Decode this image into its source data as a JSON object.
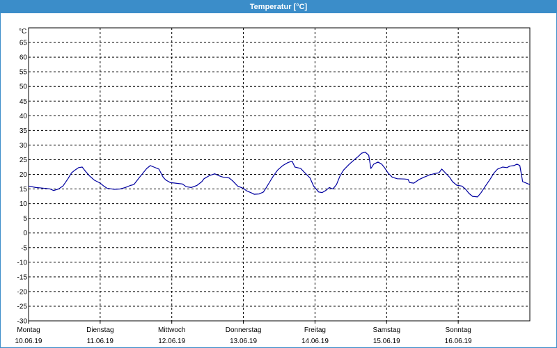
{
  "window": {
    "title": "Temperatur [°C]"
  },
  "colors": {
    "title_bar": "#3b8dc9",
    "line": "#0000a0",
    "grid": "#000000"
  },
  "chart_data": {
    "type": "line",
    "title": "Temperatur [°C]",
    "ylabel": "°C",
    "ylim": [
      -30,
      70
    ],
    "ytick_step": 5,
    "grid": true,
    "xlim": [
      0,
      7
    ],
    "x_unit": "days from 10.06.19",
    "day_labels": [
      {
        "day": "Montag",
        "date": "10.06.19"
      },
      {
        "day": "Dienstag",
        "date": "11.06.19"
      },
      {
        "day": "Mittwoch",
        "date": "12.06.19"
      },
      {
        "day": "Donnerstag",
        "date": "13.06.19"
      },
      {
        "day": "Freitag",
        "date": "14.06.19"
      },
      {
        "day": "Samstag",
        "date": "15.06.19"
      },
      {
        "day": "Sonntag",
        "date": "16.06.19"
      }
    ],
    "series": [
      {
        "color": "#0000a0",
        "points": [
          [
            0.0,
            16.0
          ],
          [
            0.1,
            15.5
          ],
          [
            0.2,
            15.3
          ],
          [
            0.3,
            15.0
          ],
          [
            0.35,
            14.5
          ],
          [
            0.42,
            15.0
          ],
          [
            0.48,
            16.0
          ],
          [
            0.55,
            18.5
          ],
          [
            0.6,
            20.5
          ],
          [
            0.65,
            21.5
          ],
          [
            0.7,
            22.3
          ],
          [
            0.75,
            22.5
          ],
          [
            0.78,
            21.5
          ],
          [
            0.85,
            19.5
          ],
          [
            0.92,
            18.0
          ],
          [
            1.0,
            17.0
          ],
          [
            1.05,
            16.0
          ],
          [
            1.1,
            15.2
          ],
          [
            1.2,
            14.9
          ],
          [
            1.28,
            15.0
          ],
          [
            1.35,
            15.5
          ],
          [
            1.42,
            16.2
          ],
          [
            1.47,
            16.5
          ],
          [
            1.55,
            19.0
          ],
          [
            1.6,
            20.5
          ],
          [
            1.65,
            22.0
          ],
          [
            1.7,
            23.0
          ],
          [
            1.75,
            22.5
          ],
          [
            1.82,
            21.8
          ],
          [
            1.88,
            19.0
          ],
          [
            1.92,
            18.0
          ],
          [
            1.98,
            17.2
          ],
          [
            2.05,
            17.0
          ],
          [
            2.15,
            16.7
          ],
          [
            2.2,
            15.8
          ],
          [
            2.27,
            15.5
          ],
          [
            2.35,
            16.2
          ],
          [
            2.42,
            17.5
          ],
          [
            2.45,
            18.5
          ],
          [
            2.52,
            19.5
          ],
          [
            2.6,
            20.2
          ],
          [
            2.66,
            19.5
          ],
          [
            2.72,
            19.0
          ],
          [
            2.8,
            18.8
          ],
          [
            2.85,
            17.8
          ],
          [
            2.92,
            16.0
          ],
          [
            3.0,
            15.2
          ],
          [
            3.05,
            14.3
          ],
          [
            3.1,
            13.8
          ],
          [
            3.15,
            13.2
          ],
          [
            3.22,
            13.3
          ],
          [
            3.28,
            14.0
          ],
          [
            3.32,
            15.5
          ],
          [
            3.37,
            17.5
          ],
          [
            3.42,
            19.5
          ],
          [
            3.48,
            21.5
          ],
          [
            3.55,
            23.0
          ],
          [
            3.62,
            24.0
          ],
          [
            3.68,
            24.5
          ],
          [
            3.72,
            22.5
          ],
          [
            3.8,
            22.0
          ],
          [
            3.86,
            20.5
          ],
          [
            3.93,
            18.8
          ],
          [
            3.98,
            16.0
          ],
          [
            4.05,
            14.0
          ],
          [
            4.1,
            13.8
          ],
          [
            4.15,
            14.5
          ],
          [
            4.2,
            15.5
          ],
          [
            4.25,
            15.0
          ],
          [
            4.3,
            16.5
          ],
          [
            4.35,
            19.5
          ],
          [
            4.4,
            21.5
          ],
          [
            4.48,
            23.5
          ],
          [
            4.55,
            25.0
          ],
          [
            4.6,
            26.0
          ],
          [
            4.65,
            27.2
          ],
          [
            4.7,
            27.6
          ],
          [
            4.75,
            26.5
          ],
          [
            4.78,
            22.0
          ],
          [
            4.82,
            23.5
          ],
          [
            4.88,
            24.2
          ],
          [
            4.93,
            23.5
          ],
          [
            4.97,
            22.3
          ],
          [
            5.02,
            20.5
          ],
          [
            5.08,
            19.0
          ],
          [
            5.15,
            18.5
          ],
          [
            5.25,
            18.4
          ],
          [
            5.3,
            18.3
          ],
          [
            5.32,
            17.2
          ],
          [
            5.38,
            17.0
          ],
          [
            5.45,
            18.2
          ],
          [
            5.52,
            19.0
          ],
          [
            5.6,
            19.8
          ],
          [
            5.68,
            20.3
          ],
          [
            5.73,
            20.5
          ],
          [
            5.77,
            21.8
          ],
          [
            5.82,
            20.5
          ],
          [
            5.88,
            19.0
          ],
          [
            5.92,
            17.5
          ],
          [
            5.98,
            16.3
          ],
          [
            6.05,
            16.0
          ],
          [
            6.1,
            15.0
          ],
          [
            6.15,
            13.5
          ],
          [
            6.2,
            12.5
          ],
          [
            6.27,
            12.3
          ],
          [
            6.32,
            13.8
          ],
          [
            6.38,
            16.0
          ],
          [
            6.45,
            18.5
          ],
          [
            6.5,
            20.5
          ],
          [
            6.55,
            21.8
          ],
          [
            6.62,
            22.5
          ],
          [
            6.68,
            22.3
          ],
          [
            6.72,
            22.8
          ],
          [
            6.78,
            23.0
          ],
          [
            6.82,
            23.5
          ],
          [
            6.86,
            23.0
          ],
          [
            6.9,
            17.5
          ],
          [
            6.95,
            17.0
          ],
          [
            7.0,
            16.5
          ]
        ]
      }
    ]
  }
}
